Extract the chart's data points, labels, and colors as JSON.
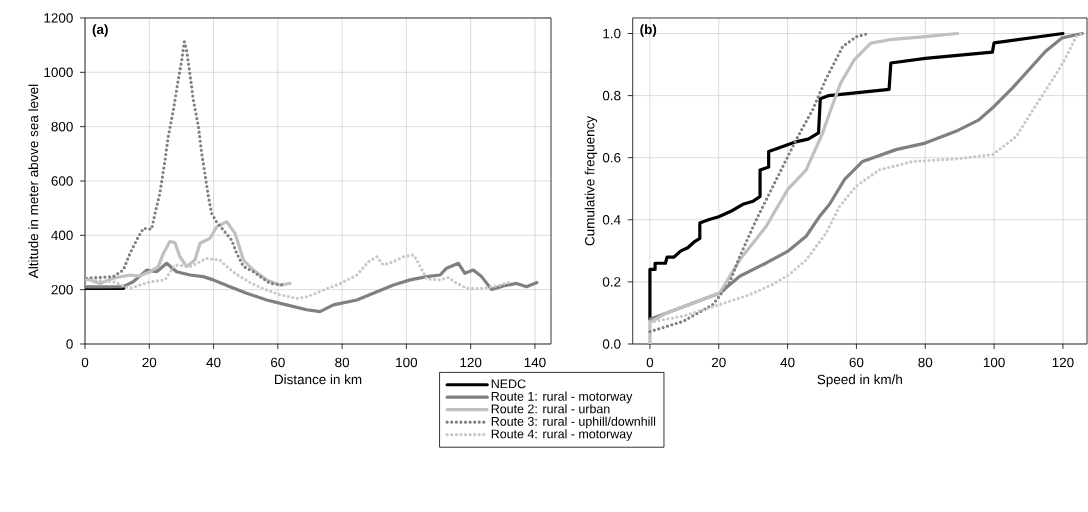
{
  "chart_data": [
    {
      "type": "line",
      "xlabel": "Distance in km",
      "ylabel": "Altitude in meter above sea level",
      "annotations": [
        "(a)"
      ],
      "xlim": [
        0,
        145
      ],
      "ylim": [
        0,
        1200
      ],
      "xticks": [
        0,
        20,
        40,
        60,
        80,
        100,
        120,
        140
      ],
      "yticks": [
        0,
        200,
        400,
        600,
        800,
        1000,
        1200
      ],
      "grid": true,
      "legend": "bottom right",
      "series": [
        {
          "name": "NEDC",
          "color": "#000000",
          "line_style": "solid",
          "x": [
            0,
            4,
            8,
            12
          ],
          "values": [
            205,
            205,
            205,
            205
          ]
        },
        {
          "name": "Route 1: rural - motorway",
          "color": "#808080",
          "line_style": "solid",
          "x": [
            0,
            6,
            11.9,
            15,
            19.2,
            22.3,
            25.4,
            28.5,
            32.7,
            36.8,
            39.9,
            45.1,
            50.3,
            56.5,
            62.7,
            69,
            73.1,
            77.3,
            84.6,
            89.7,
            96,
            101.2,
            106.3,
            110.5,
            112.5,
            116.2,
            118.2,
            120.8,
            123.4,
            126.5,
            130.2,
            134.3,
            137.4,
            140.6
          ],
          "values": [
            210,
            210,
            211,
            229,
            272,
            266,
            297,
            266,
            254,
            248,
            236,
            211,
            187,
            162,
            144,
            126,
            119,
            144,
            162,
            187,
            217,
            236,
            248,
            254,
            279,
            297,
            260,
            272,
            248,
            201,
            214,
            223,
            211,
            226
          ]
        },
        {
          "name": "Route 2: rural - urban",
          "color": "#c0c0c0",
          "line_style": "solid",
          "x": [
            0,
            4.7,
            8.8,
            14,
            17,
            20.2,
            22.8,
            24.4,
            26.4,
            28,
            29.5,
            31.6,
            34.2,
            35.8,
            38.9,
            41,
            44.1,
            46.7,
            49.3,
            52.4,
            56.5,
            60.7,
            63.8
          ],
          "values": [
            242,
            223,
            242,
            254,
            250,
            266,
            285,
            334,
            377,
            373,
            322,
            285,
            309,
            371,
            389,
            432,
            450,
            407,
            309,
            272,
            236,
            217,
            223
          ]
        },
        {
          "name": "Route 3: rural - uphill/downhill",
          "color": "#808080",
          "line_style": "dotted",
          "x": [
            0.5,
            8.8,
            11.9,
            14,
            16.6,
            18.2,
            20.7,
            21.8,
            23.3,
            24.9,
            25.9,
            27.5,
            29,
            30.1,
            30.9,
            31.6,
            32.7,
            33.7,
            35.3,
            36.3,
            37.3,
            38.4,
            39.4,
            40.9,
            43,
            45.6,
            47.2,
            49.3,
            52.4,
            57.6,
            61.7
          ],
          "values": [
            242,
            248,
            272,
            334,
            395,
            426,
            422,
            481,
            555,
            677,
            763,
            861,
            972,
            1045,
            1113,
            1082,
            990,
            898,
            800,
            702,
            628,
            542,
            481,
            450,
            420,
            383,
            334,
            285,
            266,
            223,
            217
          ]
        },
        {
          "name": "Route 4: rural - motorway",
          "color": "#c8c8c8",
          "line_style": "dotted",
          "x": [
            0.5,
            8.8,
            14,
            20.2,
            24.9,
            28,
            32.7,
            37.8,
            42,
            44.1,
            46.7,
            51.8,
            56.5,
            60.7,
            65.9,
            69.1,
            74.3,
            79.5,
            84.6,
            88.2,
            90.8,
            92.8,
            96,
            99.1,
            102.2,
            103.8,
            106.3,
            110.5,
            113.1,
            115.7,
            118.8,
            124,
            128.1,
            131.8
          ],
          "values": [
            236,
            229,
            205,
            229,
            236,
            291,
            285,
            315,
            309,
            285,
            260,
            223,
            199,
            181,
            168,
            174,
            199,
            223,
            254,
            303,
            321,
            291,
            303,
            321,
            328,
            297,
            239,
            236,
            245,
            223,
            205,
            205,
            214,
            226
          ]
        }
      ]
    },
    {
      "type": "line",
      "xlabel": "Speed in km/h",
      "ylabel": "Cumulative frequency",
      "annotations": [
        "(b)"
      ],
      "xlim": [
        -5,
        127
      ],
      "ylim": [
        0,
        1.05
      ],
      "xticks": [
        0,
        20,
        40,
        60,
        80,
        100,
        120
      ],
      "yticks": [
        {
          "value": 0,
          "label": "0.0"
        },
        0.2,
        0.4,
        0.6,
        0.8,
        {
          "value": 1,
          "label": "1.0"
        }
      ],
      "grid": true,
      "series": [
        {
          "color": "#000000",
          "line_style": "solid",
          "x": [
            0,
            0,
            1.5,
            1.5,
            4.5,
            5,
            7,
            9,
            11,
            13,
            14.5,
            14.5,
            17,
            20,
            24,
            27,
            30,
            32,
            32,
            34.5,
            34.5,
            37,
            42,
            46,
            49,
            49.5,
            52,
            69.5,
            70,
            80,
            99.5,
            100,
            120
          ],
          "values": [
            0.08,
            0.24,
            0.24,
            0.26,
            0.26,
            0.28,
            0.28,
            0.3,
            0.31,
            0.33,
            0.34,
            0.39,
            0.4,
            0.41,
            0.43,
            0.45,
            0.46,
            0.475,
            0.56,
            0.57,
            0.62,
            0.63,
            0.65,
            0.66,
            0.68,
            0.79,
            0.8,
            0.82,
            0.905,
            0.92,
            0.94,
            0.97,
            1.0
          ]
        },
        {
          "color": "#808080",
          "line_style": "solid",
          "x": [
            0,
            9.7,
            20.3,
            26.1,
            33.8,
            40,
            45.4,
            49.3,
            52.2,
            56.5,
            61.8,
            71.5,
            80,
            88.9,
            95.6,
            100,
            105.3,
            110.1,
            114.9,
            119.8,
            125.6
          ],
          "values": [
            0.08,
            0.12,
            0.164,
            0.218,
            0.261,
            0.298,
            0.347,
            0.411,
            0.45,
            0.529,
            0.588,
            0.626,
            0.647,
            0.685,
            0.722,
            0.765,
            0.824,
            0.883,
            0.942,
            0.986,
            1.0
          ]
        },
        {
          "color": "#c0c0c0",
          "line_style": "solid",
          "x": [
            0,
            0,
            4.8,
            20.3,
            26.1,
            33.8,
            40,
            45.4,
            50.2,
            52.2,
            55.4,
            59.4,
            64.2,
            69.6,
            80,
            89.4
          ],
          "values": [
            0,
            0.07,
            0.1,
            0.164,
            0.271,
            0.379,
            0.497,
            0.561,
            0.68,
            0.744,
            0.84,
            0.916,
            0.969,
            0.98,
            0.99,
            1.0
          ]
        },
        {
          "color": "#808080",
          "line_style": "dotted",
          "x": [
            0,
            9.7,
            18.3,
            23.1,
            26.1,
            30.9,
            36.7,
            42.5,
            47.3,
            51,
            56,
            60,
            63.5
          ],
          "values": [
            0.04,
            0.073,
            0.127,
            0.196,
            0.282,
            0.4,
            0.529,
            0.658,
            0.755,
            0.85,
            0.958,
            0.99,
            1.0
          ]
        },
        {
          "color": "#c8c8c8",
          "line_style": "dotted",
          "x": [
            0,
            9.7,
            20.3,
            29,
            35.7,
            40.5,
            45.4,
            51.2,
            55.1,
            59.9,
            66.7,
            76.4,
            88.9,
            99.6,
            106.4,
            111.3,
            115.1,
            120,
            123.9,
            125.6
          ],
          "values": [
            0.07,
            0.09,
            0.127,
            0.159,
            0.192,
            0.224,
            0.271,
            0.357,
            0.443,
            0.508,
            0.561,
            0.588,
            0.596,
            0.61,
            0.668,
            0.754,
            0.819,
            0.905,
            0.991,
            1.0
          ]
        }
      ]
    }
  ]
}
